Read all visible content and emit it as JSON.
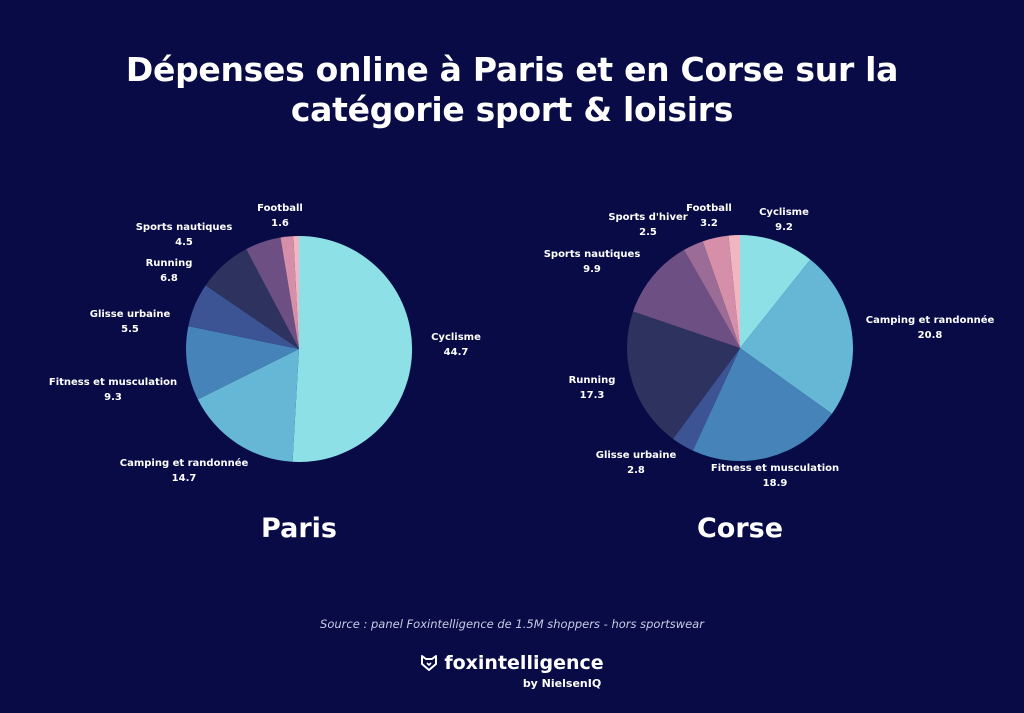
{
  "title_line1": "Dépenses online à Paris et en Corse sur la",
  "title_line2": "catégorie sport & loisirs",
  "chart_data": [
    {
      "type": "pie",
      "title": "Paris",
      "categories": [
        "Cyclisme",
        "Camping et randonnée",
        "Fitness et musculation",
        "Glisse urbaine",
        "Running",
        "Sports nautiques",
        "Football"
      ],
      "values": [
        44.7,
        14.7,
        9.3,
        5.5,
        6.8,
        4.5,
        1.6
      ],
      "value_labels": [
        "44.7",
        "14.7",
        "9.3",
        "5.5",
        "6.8",
        "4.5",
        "1.6"
      ],
      "remaining_slice_value": 0.7
    },
    {
      "type": "pie",
      "title": "Corse",
      "categories": [
        "Cyclisme",
        "Camping et randonnée",
        "Fitness et musculation",
        "Glisse urbaine",
        "Running",
        "Sports nautiques",
        "Sports d'hiver",
        "Football"
      ],
      "values": [
        9.2,
        20.8,
        18.9,
        2.8,
        17.3,
        9.9,
        2.5,
        3.2
      ],
      "value_labels": [
        "9.2",
        "20.8",
        "18.9",
        "2.8",
        "17.3",
        "9.9",
        "2.5",
        "3.2"
      ],
      "remaining_slice_value": 1.4
    }
  ],
  "colors": {
    "background": "#080b45",
    "Cyclisme": "#8ce0e6",
    "Camping et randonnée": "#66b7d6",
    "Fitness et musculation": "#4583b8",
    "Glisse urbaine": "#3c5494",
    "Running": "#2d325e",
    "Sports nautiques": "#6d4f84",
    "Sports d'hiver": "#9b6c96",
    "Football": "#d58fa8",
    "remaining": "#f1b6c2"
  },
  "source": "Source : panel Foxintelligence de 1.5M shoppers - hors sportswear",
  "brand": {
    "name": "foxintelligence",
    "sub": "by NielsenIQ",
    "icon": "fox-logo-icon"
  }
}
